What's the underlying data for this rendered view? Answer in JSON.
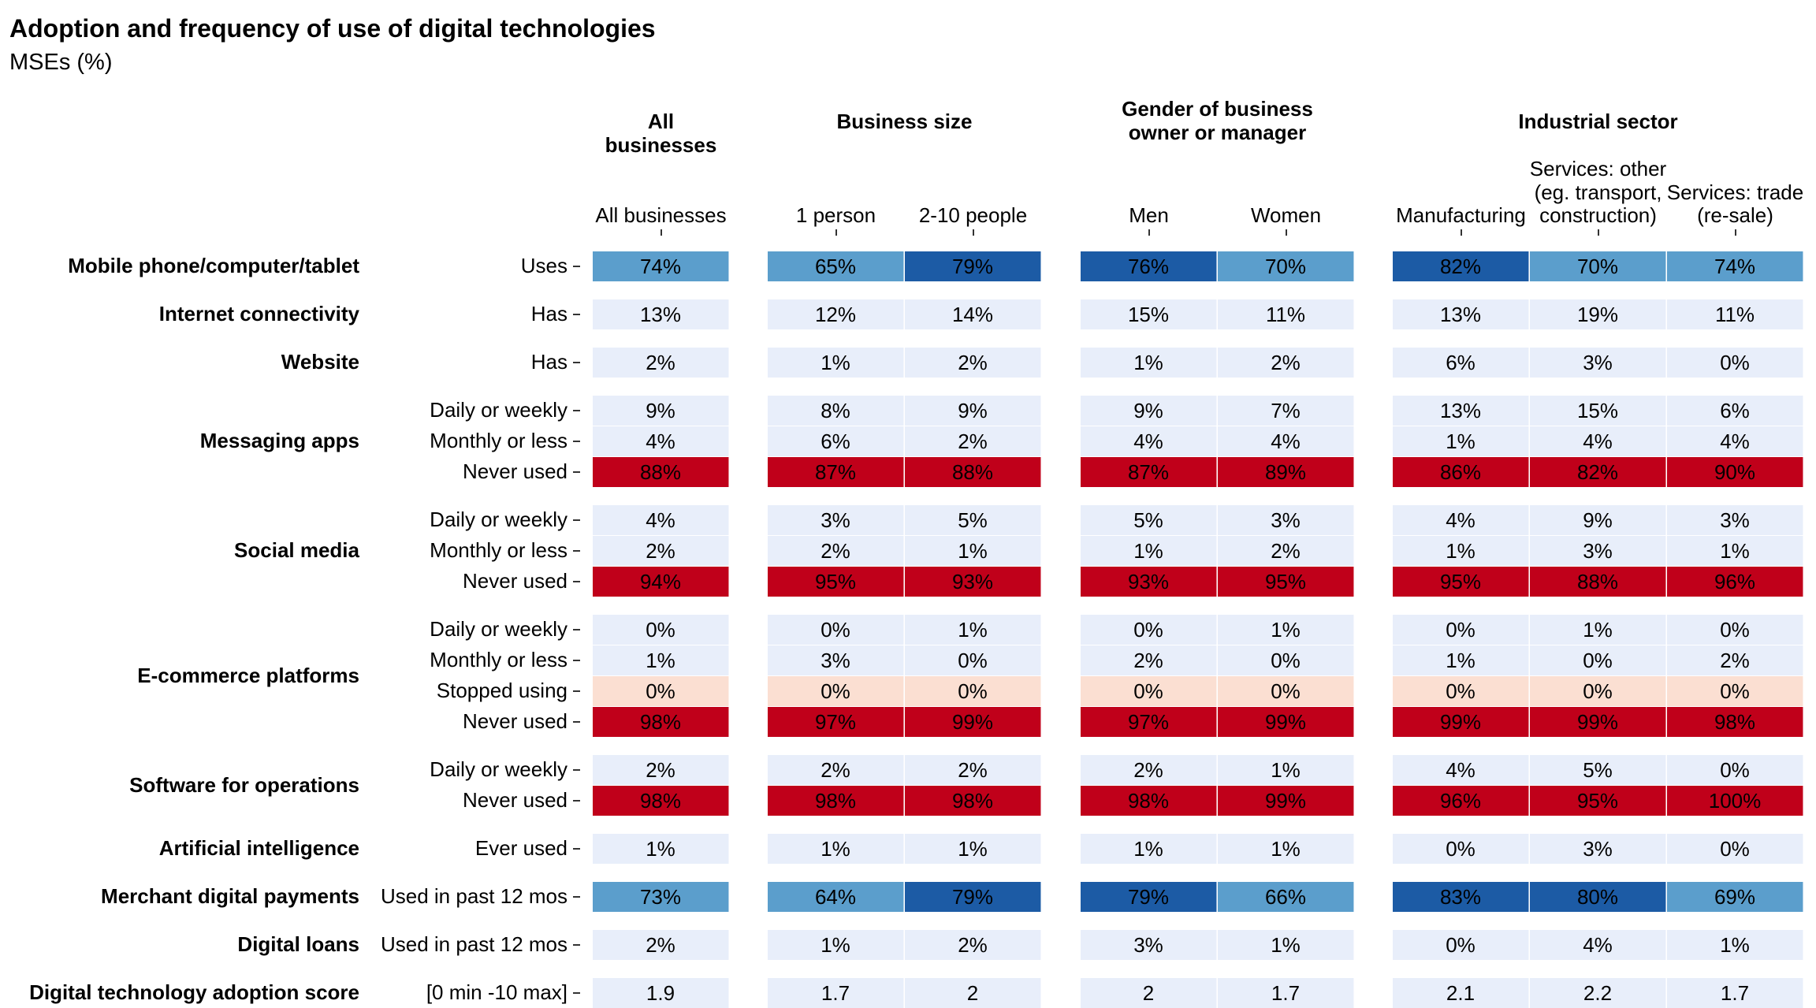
{
  "chart_data": {
    "type": "heatmap",
    "title": "Adoption and frequency of use of digital technologies",
    "subtitle": "MSEs (%)",
    "panels": [
      {
        "title": "All businesses",
        "columns": [
          "All businesses"
        ]
      },
      {
        "title": "Business size",
        "columns": [
          "1 person",
          "2-10 people"
        ]
      },
      {
        "title": "Gender of business owner or manager",
        "columns": [
          "Men",
          "Women"
        ]
      },
      {
        "title": "Industrial sector",
        "columns": [
          "Manufacturing",
          "Services: other (eg. transport, construction)",
          "Services: trade (re-sale)"
        ]
      }
    ],
    "column_headers": [
      "All businesses",
      "1 person",
      "2-10 people",
      "Men",
      "Women",
      "Manufacturing",
      "Services: other\n(eg. transport,\nconstruction)",
      "Services: trade\n(re-sale)"
    ],
    "groups": [
      {
        "label": "Mobile phone/computer/tablet",
        "rows": [
          {
            "label": "Uses",
            "values": [
              "74%",
              "65%",
              "79%",
              "76%",
              "70%",
              "82%",
              "70%",
              "74%"
            ],
            "fills": [
              "mid",
              "mid",
              "dark",
              "dark",
              "mid",
              "dark",
              "mid",
              "mid"
            ]
          }
        ]
      },
      {
        "label": "Internet connectivity",
        "rows": [
          {
            "label": "Has",
            "values": [
              "13%",
              "12%",
              "14%",
              "15%",
              "11%",
              "13%",
              "19%",
              "11%"
            ],
            "fills": [
              "light",
              "light",
              "light",
              "light",
              "light",
              "light",
              "light",
              "light"
            ]
          }
        ]
      },
      {
        "label": "Website",
        "rows": [
          {
            "label": "Has",
            "values": [
              "2%",
              "1%",
              "2%",
              "1%",
              "2%",
              "6%",
              "3%",
              "0%"
            ],
            "fills": [
              "light",
              "light",
              "light",
              "light",
              "light",
              "light",
              "light",
              "light"
            ]
          }
        ]
      },
      {
        "label": "Messaging apps",
        "rows": [
          {
            "label": "Daily or weekly",
            "values": [
              "9%",
              "8%",
              "9%",
              "9%",
              "7%",
              "13%",
              "15%",
              "6%"
            ],
            "fills": [
              "light",
              "light",
              "light",
              "light",
              "light",
              "light",
              "light",
              "light"
            ]
          },
          {
            "label": "Monthly or less",
            "values": [
              "4%",
              "6%",
              "2%",
              "4%",
              "4%",
              "1%",
              "4%",
              "4%"
            ],
            "fills": [
              "light",
              "light",
              "light",
              "light",
              "light",
              "light",
              "light",
              "light"
            ]
          },
          {
            "label": "Never used",
            "values": [
              "88%",
              "87%",
              "88%",
              "87%",
              "89%",
              "86%",
              "82%",
              "90%"
            ],
            "fills": [
              "red",
              "red",
              "red",
              "red",
              "red",
              "red",
              "red",
              "red"
            ]
          }
        ]
      },
      {
        "label": "Social media",
        "rows": [
          {
            "label": "Daily or weekly",
            "values": [
              "4%",
              "3%",
              "5%",
              "5%",
              "3%",
              "4%",
              "9%",
              "3%"
            ],
            "fills": [
              "light",
              "light",
              "light",
              "light",
              "light",
              "light",
              "light",
              "light"
            ]
          },
          {
            "label": "Monthly or less",
            "values": [
              "2%",
              "2%",
              "1%",
              "1%",
              "2%",
              "1%",
              "3%",
              "1%"
            ],
            "fills": [
              "light",
              "light",
              "light",
              "light",
              "light",
              "light",
              "light",
              "light"
            ]
          },
          {
            "label": "Never used",
            "values": [
              "94%",
              "95%",
              "93%",
              "93%",
              "95%",
              "95%",
              "88%",
              "96%"
            ],
            "fills": [
              "red",
              "red",
              "red",
              "red",
              "red",
              "red",
              "red",
              "red"
            ]
          }
        ]
      },
      {
        "label": "E-commerce platforms",
        "rows": [
          {
            "label": "Daily or weekly",
            "values": [
              "0%",
              "0%",
              "1%",
              "0%",
              "1%",
              "0%",
              "1%",
              "0%"
            ],
            "fills": [
              "light",
              "light",
              "light",
              "light",
              "light",
              "light",
              "light",
              "light"
            ]
          },
          {
            "label": "Monthly or less",
            "values": [
              "1%",
              "3%",
              "0%",
              "2%",
              "0%",
              "1%",
              "0%",
              "2%"
            ],
            "fills": [
              "light",
              "light",
              "light",
              "light",
              "light",
              "light",
              "light",
              "light"
            ]
          },
          {
            "label": "Stopped using",
            "values": [
              "0%",
              "0%",
              "0%",
              "0%",
              "0%",
              "0%",
              "0%",
              "0%"
            ],
            "fills": [
              "peach",
              "peach",
              "peach",
              "peach",
              "peach",
              "peach",
              "peach",
              "peach"
            ]
          },
          {
            "label": "Never used",
            "values": [
              "98%",
              "97%",
              "99%",
              "97%",
              "99%",
              "99%",
              "99%",
              "98%"
            ],
            "fills": [
              "red",
              "red",
              "red",
              "red",
              "red",
              "red",
              "red",
              "red"
            ]
          }
        ]
      },
      {
        "label": "Software for operations",
        "rows": [
          {
            "label": "Daily or weekly",
            "values": [
              "2%",
              "2%",
              "2%",
              "2%",
              "1%",
              "4%",
              "5%",
              "0%"
            ],
            "fills": [
              "light",
              "light",
              "light",
              "light",
              "light",
              "light",
              "light",
              "light"
            ]
          },
          {
            "label": "Never used",
            "values": [
              "98%",
              "98%",
              "98%",
              "98%",
              "99%",
              "96%",
              "95%",
              "100%"
            ],
            "fills": [
              "red",
              "red",
              "red",
              "red",
              "red",
              "red",
              "red",
              "red"
            ]
          }
        ]
      },
      {
        "label": "Artificial intelligence",
        "rows": [
          {
            "label": "Ever used",
            "values": [
              "1%",
              "1%",
              "1%",
              "1%",
              "1%",
              "0%",
              "3%",
              "0%"
            ],
            "fills": [
              "light",
              "light",
              "light",
              "light",
              "light",
              "light",
              "light",
              "light"
            ]
          }
        ]
      },
      {
        "label": "Merchant digital payments",
        "rows": [
          {
            "label": "Used in past 12 mos",
            "values": [
              "73%",
              "64%",
              "79%",
              "79%",
              "66%",
              "83%",
              "80%",
              "69%"
            ],
            "fills": [
              "mid",
              "mid",
              "dark",
              "dark",
              "mid",
              "dark",
              "dark",
              "mid"
            ]
          }
        ]
      },
      {
        "label": "Digital loans",
        "rows": [
          {
            "label": "Used in past 12 mos",
            "values": [
              "2%",
              "1%",
              "2%",
              "3%",
              "1%",
              "0%",
              "4%",
              "1%"
            ],
            "fills": [
              "light",
              "light",
              "light",
              "light",
              "light",
              "light",
              "light",
              "light"
            ]
          }
        ]
      },
      {
        "label": "Digital technology adoption score",
        "rows": [
          {
            "label": "[0 min -10 max]",
            "values": [
              "1.9",
              "1.7",
              "2",
              "2",
              "1.7",
              "2.1",
              "2.2",
              "1.7"
            ],
            "fills": [
              "light",
              "light",
              "light",
              "light",
              "light",
              "light",
              "light",
              "light"
            ]
          }
        ]
      }
    ],
    "colors": {
      "light": "#e8eefa",
      "mid": "#5b9ecc",
      "dark": "#1c5ba5",
      "red": "#c0001a",
      "peach": "#fbdfd2",
      "text": "#000000",
      "tick": "#333333"
    }
  }
}
